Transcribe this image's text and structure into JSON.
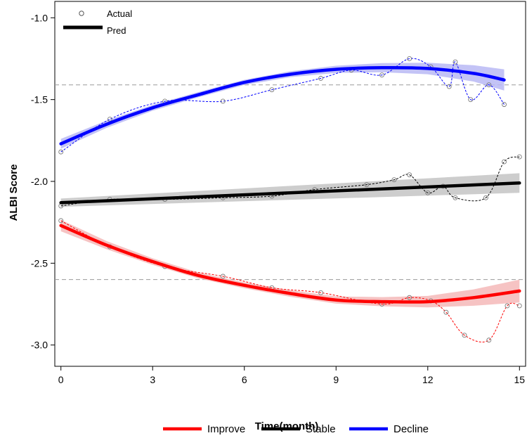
{
  "chart_data": {
    "type": "line",
    "title": "",
    "xlabel": "Time(month)",
    "ylabel": "ALBI Score",
    "xlim": [
      -0.2,
      15.2
    ],
    "ylim": [
      -3.13,
      -0.9
    ],
    "xticks": [
      0,
      3,
      6,
      9,
      12,
      15
    ],
    "xtick_labels": [
      "0",
      "3",
      "6",
      "9",
      "12",
      "15"
    ],
    "yticks": [
      -1.0,
      -1.5,
      -2.0,
      -2.5,
      -3.0
    ],
    "ytick_labels": [
      "-1.0",
      "-1.5",
      "-2.0",
      "-2.5",
      "-3.0"
    ],
    "reference_lines": [
      -1.41,
      -2.6
    ],
    "inset_legend": {
      "actual_label": "Actual",
      "pred_label": "Pred",
      "position": "top-left"
    },
    "bottom_legend": {
      "position": "bottom-center"
    },
    "series": [
      {
        "name": "Improve",
        "color": "#ff0000",
        "band_color": "#f4b8b8",
        "actual": [
          [
            0,
            -2.24
          ],
          [
            1.6,
            -2.4
          ],
          [
            3.4,
            -2.52
          ],
          [
            5.3,
            -2.58
          ],
          [
            6.9,
            -2.65
          ],
          [
            8.5,
            -2.68
          ],
          [
            10.5,
            -2.75
          ],
          [
            11.4,
            -2.71
          ],
          [
            12.1,
            -2.73
          ],
          [
            12.6,
            -2.8
          ],
          [
            13.2,
            -2.94
          ],
          [
            14.0,
            -2.97
          ],
          [
            14.6,
            -2.76
          ],
          [
            15.0,
            -2.76
          ]
        ],
        "pred": [
          [
            0,
            -2.27
          ],
          [
            1.5,
            -2.39
          ],
          [
            3,
            -2.49
          ],
          [
            4.5,
            -2.575
          ],
          [
            6,
            -2.635
          ],
          [
            7.5,
            -2.685
          ],
          [
            9,
            -2.725
          ],
          [
            10.5,
            -2.735
          ],
          [
            12,
            -2.735
          ],
          [
            13.5,
            -2.71
          ],
          [
            15,
            -2.67
          ]
        ],
        "band_halfwidth": [
          0.035,
          0.025,
          0.02,
          0.018,
          0.018,
          0.02,
          0.022,
          0.028,
          0.035,
          0.05,
          0.07
        ]
      },
      {
        "name": "Stable",
        "color": "#000000",
        "band_color": "#c4c4c4",
        "actual": [
          [
            0,
            -2.15
          ],
          [
            1.6,
            -2.11
          ],
          [
            3.4,
            -2.11
          ],
          [
            5.3,
            -2.1
          ],
          [
            6.9,
            -2.09
          ],
          [
            8.3,
            -2.05
          ],
          [
            10.0,
            -2.02
          ],
          [
            10.9,
            -1.99
          ],
          [
            11.4,
            -1.96
          ],
          [
            12.0,
            -2.07
          ],
          [
            12.5,
            -2.03
          ],
          [
            12.9,
            -2.1
          ],
          [
            13.9,
            -2.1
          ],
          [
            14.5,
            -1.88
          ],
          [
            15.0,
            -1.85
          ]
        ],
        "pred": [
          [
            0,
            -2.13
          ],
          [
            15,
            -2.01
          ]
        ],
        "band_halfwidth": [
          0.025,
          0.06
        ]
      },
      {
        "name": "Decline",
        "color": "#0000ff",
        "band_color": "#b8b8f4",
        "actual": [
          [
            0,
            -1.82
          ],
          [
            1.6,
            -1.62
          ],
          [
            3.4,
            -1.51
          ],
          [
            5.3,
            -1.51
          ],
          [
            6.9,
            -1.44
          ],
          [
            8.5,
            -1.37
          ],
          [
            9.5,
            -1.32
          ],
          [
            10.5,
            -1.35
          ],
          [
            11.4,
            -1.25
          ],
          [
            12.1,
            -1.3
          ],
          [
            12.7,
            -1.42
          ],
          [
            12.9,
            -1.27
          ],
          [
            13.4,
            -1.5
          ],
          [
            14.0,
            -1.41
          ],
          [
            14.5,
            -1.53
          ]
        ],
        "pred": [
          [
            0,
            -1.77
          ],
          [
            1.5,
            -1.65
          ],
          [
            3,
            -1.55
          ],
          [
            4.5,
            -1.47
          ],
          [
            6,
            -1.395
          ],
          [
            7.5,
            -1.345
          ],
          [
            9,
            -1.315
          ],
          [
            10.5,
            -1.305
          ],
          [
            12,
            -1.31
          ],
          [
            13.5,
            -1.34
          ],
          [
            14.5,
            -1.38
          ]
        ],
        "band_halfwidth": [
          0.03,
          0.022,
          0.018,
          0.016,
          0.016,
          0.018,
          0.022,
          0.028,
          0.035,
          0.05,
          0.065
        ]
      }
    ]
  }
}
